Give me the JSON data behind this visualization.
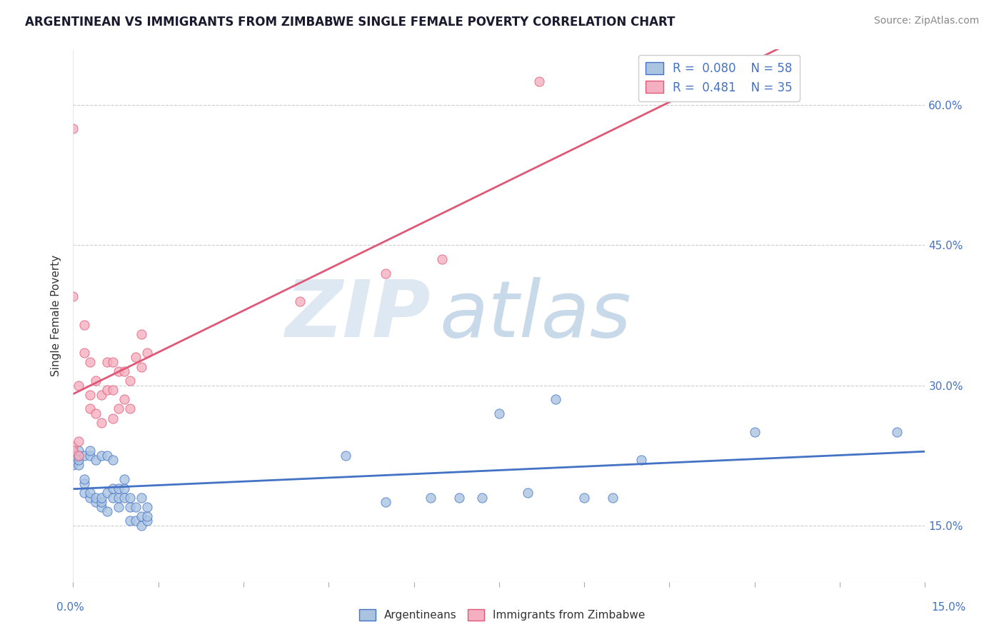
{
  "title": "ARGENTINEAN VS IMMIGRANTS FROM ZIMBABWE SINGLE FEMALE POVERTY CORRELATION CHART",
  "source": "Source: ZipAtlas.com",
  "legend_label1": "Argentineans",
  "legend_label2": "Immigrants from Zimbabwe",
  "r1": 0.08,
  "n1": 58,
  "r2": 0.481,
  "n2": 35,
  "color_blue": "#aac4e0",
  "color_pink": "#f4b0c0",
  "line_blue": "#4472c4",
  "line_pink": "#e05878",
  "blue_x": [
    0.0,
    0.0,
    0.0,
    0.001,
    0.001,
    0.001,
    0.001,
    0.002,
    0.002,
    0.002,
    0.002,
    0.003,
    0.003,
    0.003,
    0.003,
    0.004,
    0.004,
    0.004,
    0.005,
    0.005,
    0.005,
    0.005,
    0.006,
    0.006,
    0.006,
    0.007,
    0.007,
    0.007,
    0.008,
    0.008,
    0.008,
    0.009,
    0.009,
    0.009,
    0.01,
    0.01,
    0.01,
    0.011,
    0.011,
    0.012,
    0.012,
    0.012,
    0.013,
    0.013,
    0.013,
    0.048,
    0.055,
    0.063,
    0.068,
    0.072,
    0.08,
    0.085,
    0.09,
    0.095,
    0.1,
    0.12,
    0.145,
    0.075
  ],
  "blue_y": [
    0.225,
    0.22,
    0.215,
    0.215,
    0.22,
    0.225,
    0.23,
    0.195,
    0.2,
    0.185,
    0.225,
    0.18,
    0.185,
    0.225,
    0.23,
    0.175,
    0.18,
    0.22,
    0.17,
    0.175,
    0.18,
    0.225,
    0.165,
    0.185,
    0.225,
    0.18,
    0.19,
    0.22,
    0.17,
    0.18,
    0.19,
    0.18,
    0.19,
    0.2,
    0.155,
    0.17,
    0.18,
    0.155,
    0.17,
    0.15,
    0.16,
    0.18,
    0.155,
    0.16,
    0.17,
    0.225,
    0.175,
    0.18,
    0.18,
    0.18,
    0.185,
    0.285,
    0.18,
    0.18,
    0.22,
    0.25,
    0.25,
    0.27
  ],
  "pink_x": [
    0.0,
    0.0,
    0.0,
    0.0,
    0.001,
    0.001,
    0.001,
    0.002,
    0.002,
    0.003,
    0.003,
    0.003,
    0.004,
    0.004,
    0.005,
    0.005,
    0.006,
    0.006,
    0.007,
    0.007,
    0.007,
    0.008,
    0.008,
    0.009,
    0.009,
    0.01,
    0.01,
    0.011,
    0.012,
    0.012,
    0.013,
    0.04,
    0.055,
    0.065,
    0.082
  ],
  "pink_y": [
    0.235,
    0.23,
    0.575,
    0.395,
    0.225,
    0.24,
    0.3,
    0.365,
    0.335,
    0.275,
    0.29,
    0.325,
    0.27,
    0.305,
    0.26,
    0.29,
    0.295,
    0.325,
    0.265,
    0.295,
    0.325,
    0.275,
    0.315,
    0.285,
    0.315,
    0.275,
    0.305,
    0.33,
    0.32,
    0.355,
    0.335,
    0.39,
    0.42,
    0.435,
    0.625
  ],
  "xmin": 0.0,
  "xmax": 0.15,
  "ymin": 0.09,
  "ymax": 0.66,
  "yticks": [
    0.15,
    0.3,
    0.45,
    0.6
  ],
  "ytick_labels": [
    "15.0%",
    "30.0%",
    "45.0%",
    "60.0%"
  ],
  "ylabel": "Single Female Poverty",
  "title_fontsize": 12,
  "source_fontsize": 10
}
